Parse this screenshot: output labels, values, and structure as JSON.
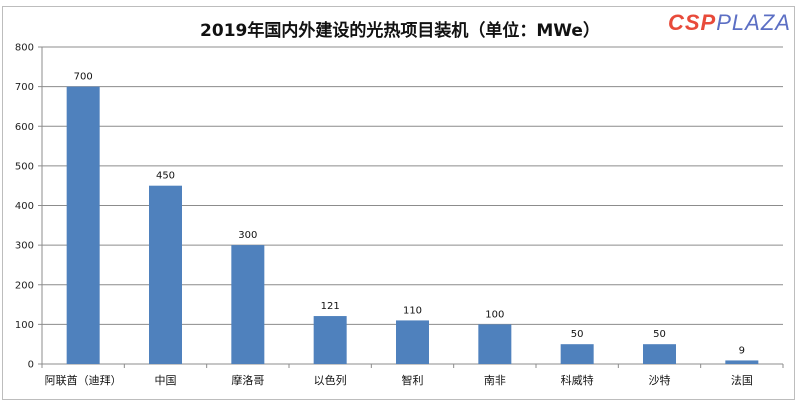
{
  "chart_data": {
    "type": "bar",
    "title": "2019年国内外建设的光热项目装机（单位：MWe）",
    "categories": [
      "阿联酋（迪拜）",
      "中国",
      "摩洛哥",
      "以色列",
      "智利",
      "南非",
      "科威特",
      "沙特",
      "法国"
    ],
    "values": [
      700,
      450,
      300,
      121,
      110,
      100,
      50,
      50,
      9
    ],
    "xlabel": "",
    "ylabel": "",
    "ylim": [
      0,
      800
    ],
    "yticks": [
      0,
      100,
      200,
      300,
      400,
      500,
      600,
      700,
      800
    ],
    "grid": true,
    "legend": "none",
    "bar_color": "#4f81bd",
    "data_labels": true
  },
  "watermark": {
    "part1": "CSP",
    "part2": "PLAZA"
  }
}
